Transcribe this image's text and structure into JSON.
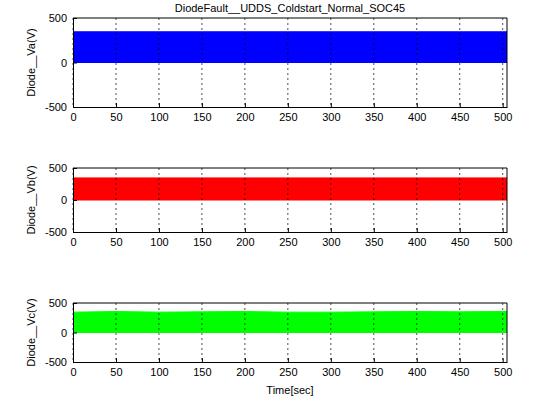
{
  "chart_data": [
    {
      "type": "area",
      "title": "DiodeFault__UDDS_Coldstart_Normal_SOC45",
      "y_label": "Diode__Va(V)",
      "x": [
        0,
        50,
        100,
        150,
        200,
        250,
        300,
        350,
        400,
        450,
        500,
        505
      ],
      "values": [
        345,
        345,
        345,
        345,
        345,
        345,
        345,
        345,
        345,
        345,
        345,
        345
      ],
      "lower": [
        0,
        0,
        0,
        0,
        0,
        0,
        0,
        0,
        0,
        0,
        0,
        0
      ],
      "color": "#0000ff",
      "xlim": [
        0,
        505
      ],
      "ylim": [
        -500,
        500
      ],
      "xticks": [
        0,
        50,
        100,
        150,
        200,
        250,
        300,
        350,
        400,
        450,
        500
      ],
      "yticks": [
        -500,
        0,
        500
      ],
      "grid": "x"
    },
    {
      "type": "area",
      "y_label": "Diode__Vb(V)",
      "x": [
        0,
        50,
        100,
        150,
        200,
        250,
        300,
        350,
        400,
        450,
        500,
        505
      ],
      "values": [
        345,
        345,
        345,
        345,
        345,
        345,
        345,
        345,
        345,
        345,
        345,
        345
      ],
      "lower": [
        0,
        0,
        0,
        0,
        0,
        0,
        0,
        0,
        0,
        0,
        0,
        0
      ],
      "color": "#ff0000",
      "xlim": [
        0,
        505
      ],
      "ylim": [
        -500,
        500
      ],
      "xticks": [
        0,
        50,
        100,
        150,
        200,
        250,
        300,
        350,
        400,
        450,
        500
      ],
      "yticks": [
        -500,
        0,
        500
      ],
      "grid": "x"
    },
    {
      "type": "area",
      "y_label": "Diode__Vc(V)",
      "x_label": "Time[sec]",
      "x": [
        0,
        50,
        100,
        150,
        200,
        250,
        300,
        350,
        400,
        450,
        500,
        505
      ],
      "values": [
        345,
        355,
        345,
        350,
        355,
        345,
        345,
        350,
        355,
        350,
        355,
        355
      ],
      "lower": [
        0,
        0,
        0,
        0,
        0,
        0,
        0,
        0,
        0,
        0,
        0,
        0
      ],
      "color": "#00ff00",
      "xlim": [
        0,
        505
      ],
      "ylim": [
        -500,
        500
      ],
      "xticks": [
        0,
        50,
        100,
        150,
        200,
        250,
        300,
        350,
        400,
        450,
        500
      ],
      "yticks": [
        -500,
        0,
        500
      ],
      "grid": "x"
    }
  ]
}
